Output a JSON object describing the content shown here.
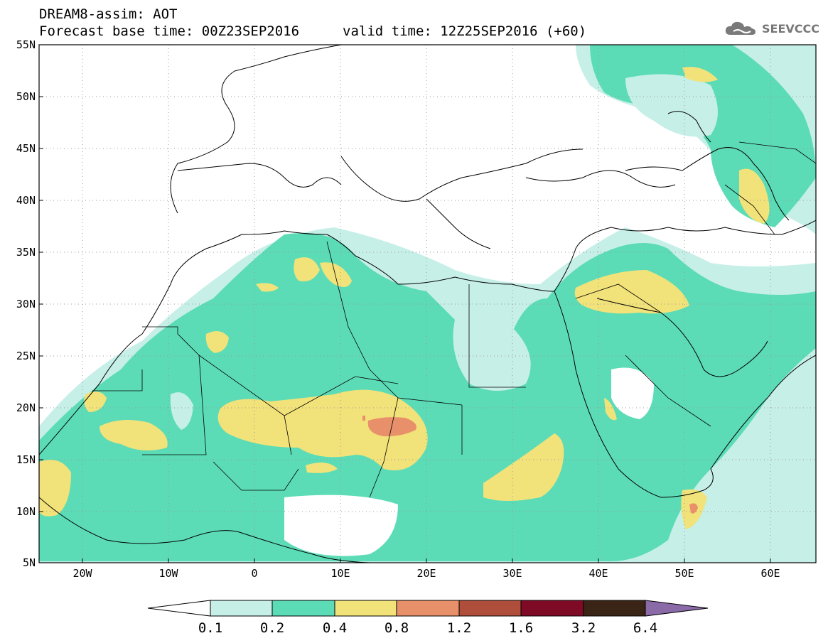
{
  "header": {
    "title": "DREAM8-assim: AOT",
    "base_time": "Forecast base time: 00Z23SEP2016",
    "valid_time": "valid time: 12Z25SEP2016 (+60)"
  },
  "logo": {
    "text": "SEEVCCC",
    "icon": "cloud-icon"
  },
  "map": {
    "lon_range": [
      -25,
      65
    ],
    "lat_range": [
      5,
      55
    ],
    "lat_ticks": [
      "55N",
      "50N",
      "45N",
      "40N",
      "35N",
      "30N",
      "25N",
      "20N",
      "15N",
      "10N",
      "5N"
    ],
    "lon_ticks": [
      "20W",
      "10W",
      "0",
      "10E",
      "20E",
      "30E",
      "40E",
      "50E",
      "60E"
    ],
    "grid": "dotted"
  },
  "colorbar": {
    "labels": [
      "0.1",
      "0.2",
      "0.4",
      "0.8",
      "1.2",
      "1.6",
      "3.2",
      "6.4"
    ],
    "colors": [
      "#ffffff",
      "#c6efe8",
      "#5cdcb6",
      "#f2e27a",
      "#e8906a",
      "#b04e3c",
      "#7e0a26",
      "#3a2416",
      "#8b6aa8"
    ]
  }
}
